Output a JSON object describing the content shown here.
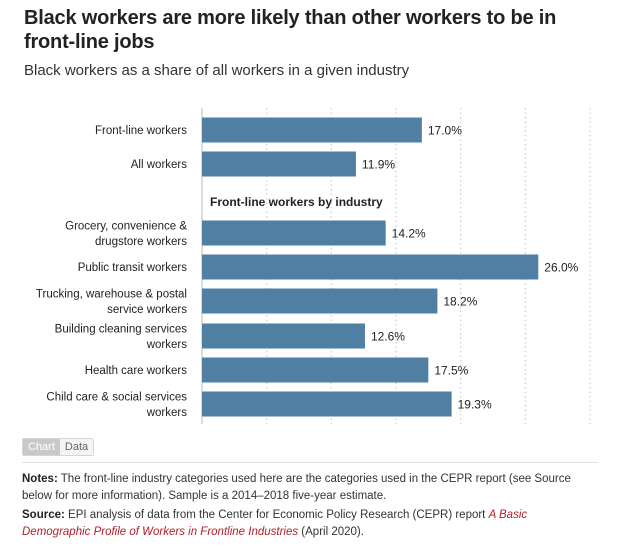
{
  "header": {
    "title": "Black workers are more likely than other workers to be in front-line jobs",
    "subtitle": "Black workers as a share of all workers in a given industry"
  },
  "chart_data": {
    "type": "bar",
    "orientation": "horizontal",
    "bar_color": "#4f7fa3",
    "section_label": "Front-line workers by industry",
    "value_suffix": "%",
    "xlim": [
      0,
      30
    ],
    "grid": "vertical dotted",
    "categories": [
      [
        "Front-line workers"
      ],
      [
        "All workers"
      ],
      [
        "Grocery, convenience &",
        "drugstore workers"
      ],
      [
        "Public transit workers"
      ],
      [
        "Trucking, warehouse & postal",
        "service workers"
      ],
      [
        "Building cleaning services",
        "workers"
      ],
      [
        "Health care workers"
      ],
      [
        "Child care & social services",
        "workers"
      ]
    ],
    "values": [
      17.0,
      11.9,
      14.2,
      26.0,
      18.2,
      12.6,
      17.5,
      19.3
    ],
    "labels": [
      "17.0%",
      "11.9%",
      "14.2%",
      "26.0%",
      "18.2%",
      "12.6%",
      "17.5%",
      "19.3%"
    ]
  },
  "tabs": {
    "chart": "Chart",
    "data": "Data"
  },
  "footer": {
    "notes_label": "Notes:",
    "notes_text": " The front-line industry categories used here are the categories used in the CEPR report (see Source below for more information). Sample is a 2014–2018 five-year estimate.",
    "source_label": "Source:",
    "source_text": " EPI analysis of data from the Center for Economic Policy Research (CEPR) report ",
    "source_link": "A Basic Demographic Profile of Workers in Frontline Industries",
    "source_tail": " (April 2020)."
  }
}
